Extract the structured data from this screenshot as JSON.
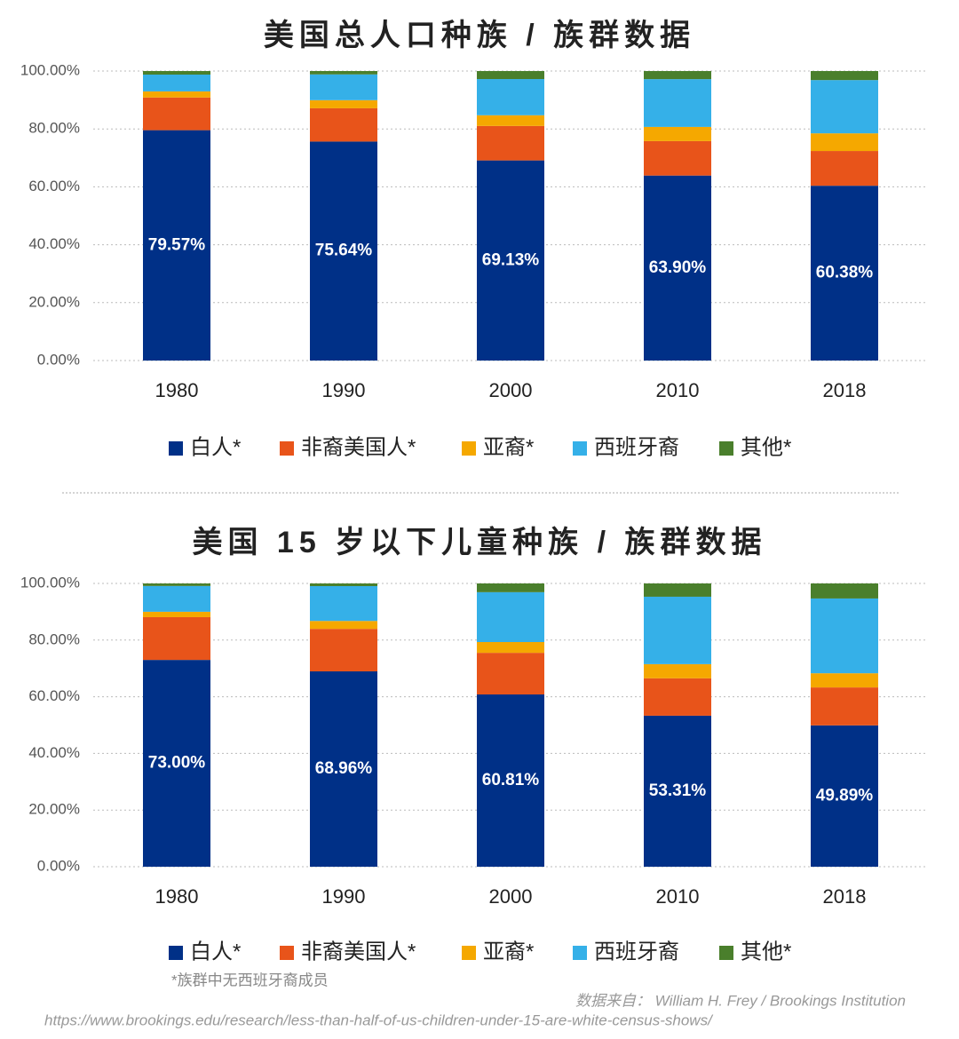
{
  "chart_data": [
    {
      "type": "bar",
      "stacked": true,
      "title": "美国总人口种族 / 族群数据",
      "categories": [
        "1980",
        "1990",
        "2000",
        "2010",
        "2018"
      ],
      "series": [
        {
          "name": "白人*",
          "color": "#003087",
          "values": [
            79.57,
            75.64,
            69.13,
            63.9,
            60.38
          ],
          "value_labels": [
            "79.57%",
            "75.64%",
            "69.13%",
            "63.90%",
            "60.38%"
          ]
        },
        {
          "name": "非裔美国人*",
          "color": "#e8541a",
          "values": [
            11.3,
            11.5,
            11.9,
            11.9,
            12.0
          ]
        },
        {
          "name": "亚裔*",
          "color": "#f5a800",
          "values": [
            2.1,
            2.8,
            3.7,
            4.9,
            6.1
          ]
        },
        {
          "name": "西班牙裔",
          "color": "#35b0e8",
          "values": [
            5.8,
            8.9,
            12.5,
            16.5,
            18.4
          ]
        },
        {
          "name": "其他*",
          "color": "#4a7f2c",
          "values": [
            1.23,
            1.16,
            2.77,
            2.8,
            3.12
          ]
        }
      ],
      "ylim": [
        0,
        100
      ],
      "yticks": [
        {
          "value": 0,
          "label": "0.00%"
        },
        {
          "value": 20,
          "label": "20.00%"
        },
        {
          "value": 40,
          "label": "40.00%"
        },
        {
          "value": 60,
          "label": "60.00%"
        },
        {
          "value": 80,
          "label": "80.00%"
        },
        {
          "value": 100,
          "label": "100.00%"
        }
      ],
      "grid": true,
      "legend": "bottom"
    },
    {
      "type": "bar",
      "stacked": true,
      "title": "美国 15 岁以下儿童种族 / 族群数据",
      "categories": [
        "1980",
        "1990",
        "2000",
        "2010",
        "2018"
      ],
      "series": [
        {
          "name": "白人*",
          "color": "#003087",
          "values": [
            73.0,
            68.96,
            60.81,
            53.31,
            49.89
          ],
          "value_labels": [
            "73.00%",
            "68.96%",
            "60.81%",
            "53.31%",
            "49.89%"
          ]
        },
        {
          "name": "非裔美国人*",
          "color": "#e8541a",
          "values": [
            15.1,
            15.0,
            14.7,
            13.2,
            13.4
          ]
        },
        {
          "name": "亚裔*",
          "color": "#f5a800",
          "values": [
            1.9,
            2.8,
            3.8,
            5.0,
            5.0
          ]
        },
        {
          "name": "西班牙裔",
          "color": "#35b0e8",
          "values": [
            9.1,
            12.3,
            17.6,
            23.8,
            26.4
          ]
        },
        {
          "name": "其他*",
          "color": "#4a7f2c",
          "values": [
            0.9,
            0.94,
            3.09,
            4.69,
            5.31
          ]
        }
      ],
      "ylim": [
        0,
        100
      ],
      "yticks": [
        {
          "value": 0,
          "label": "0.00%"
        },
        {
          "value": 20,
          "label": "20.00%"
        },
        {
          "value": 40,
          "label": "40.00%"
        },
        {
          "value": 60,
          "label": "60.00%"
        },
        {
          "value": 80,
          "label": "80.00%"
        },
        {
          "value": 100,
          "label": "100.00%"
        }
      ],
      "grid": true,
      "legend": "bottom"
    }
  ],
  "footnote": "*族群中无西班牙裔成员",
  "source": "数据来自： William H. Frey / Brookings Institution",
  "url": "https://www.brookings.edu/research/less-than-half-of-us-children-under-15-are-white-census-shows/"
}
